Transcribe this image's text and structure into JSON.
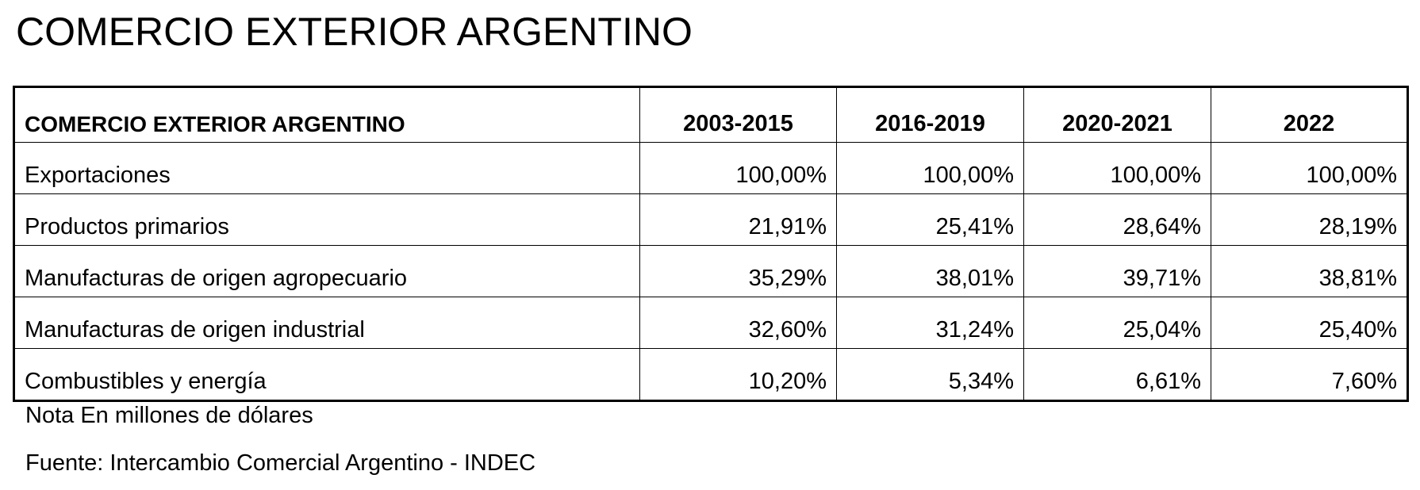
{
  "header": {
    "title": "COMERCIO EXTERIOR ARGENTINO"
  },
  "table": {
    "columns": [
      "COMERCIO EXTERIOR ARGENTINO",
      "2003-2015",
      "2016-2019",
      "2020-2021",
      "2022"
    ],
    "rows": [
      [
        "Exportaciones",
        "100,00%",
        "100,00%",
        "100,00%",
        "100,00%"
      ],
      [
        "Productos primarios",
        "21,91%",
        "25,41%",
        "28,64%",
        "28,19%"
      ],
      [
        "Manufacturas de origen agropecuario",
        "35,29%",
        "38,01%",
        "39,71%",
        "38,81%"
      ],
      [
        "Manufacturas de origen industrial",
        "32,60%",
        "31,24%",
        "25,04%",
        "25,40%"
      ],
      [
        "Combustibles y energía",
        "10,20%",
        "5,34%",
        "6,61%",
        "7,60%"
      ]
    ]
  },
  "notes": [
    "Nota En millones de dólares",
    "Fuente: Intercambio Comercial Argentino - INDEC"
  ]
}
